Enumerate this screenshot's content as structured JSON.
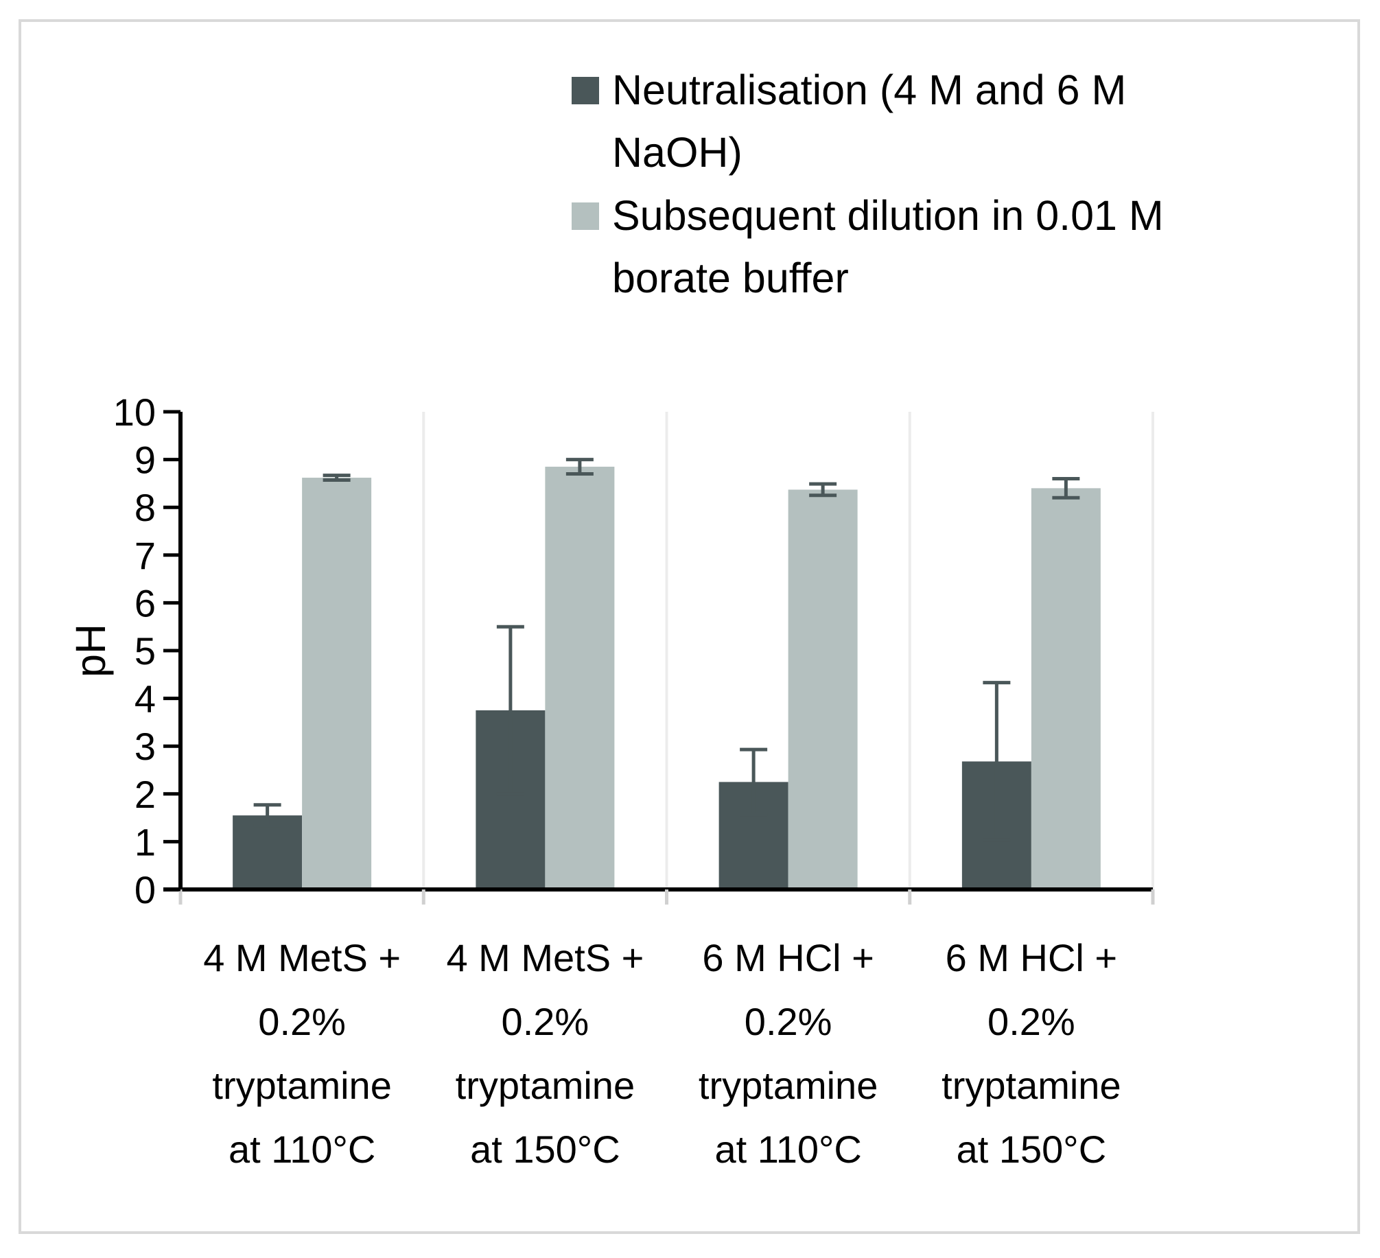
{
  "chart_data": {
    "type": "bar",
    "title": "",
    "xlabel": "",
    "ylabel": "pH",
    "ylim": [
      0,
      10
    ],
    "yticks": [
      0,
      1,
      2,
      3,
      4,
      5,
      6,
      7,
      8,
      9,
      10
    ],
    "categories": [
      [
        "4 M MetS +",
        "0.2%",
        "tryptamine",
        "at 110°C"
      ],
      [
        "4 M MetS +",
        "0.2%",
        "tryptamine",
        "at 150°C"
      ],
      [
        "6 M HCl +",
        "0.2%",
        "tryptamine",
        "at 110°C"
      ],
      [
        "6 M HCl +",
        "0.2%",
        "tryptamine",
        "at 150°C"
      ]
    ],
    "series": [
      {
        "name": [
          "Neutralisation (4 M and 6 M",
          "NaOH)"
        ],
        "color": "#4a5759",
        "values": [
          1.55,
          3.75,
          2.25,
          2.68
        ],
        "errors": [
          0.22,
          1.75,
          0.68,
          1.65
        ]
      },
      {
        "name": [
          "Subsequent dilution in 0.01 M",
          "borate buffer"
        ],
        "color": "#b4c0bf",
        "values": [
          8.62,
          8.85,
          8.37,
          8.4
        ],
        "errors": [
          0.05,
          0.15,
          0.12,
          0.2
        ]
      }
    ],
    "error_bar_color": "#4a5759",
    "legend_position": "top-right",
    "grid": "vertical category separators"
  }
}
